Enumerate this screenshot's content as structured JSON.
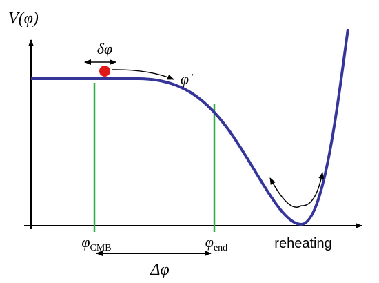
{
  "axis": {
    "y_label": "V(φ)"
  },
  "labels": {
    "field_fluctuation": "δφ",
    "field_velocity": "φ̇",
    "cmb": {
      "symbol": "φ",
      "subscript": "CMB"
    },
    "end": {
      "symbol": "φ",
      "subscript": "end"
    },
    "reheating": "reheating",
    "field_range": "Δφ"
  }
}
